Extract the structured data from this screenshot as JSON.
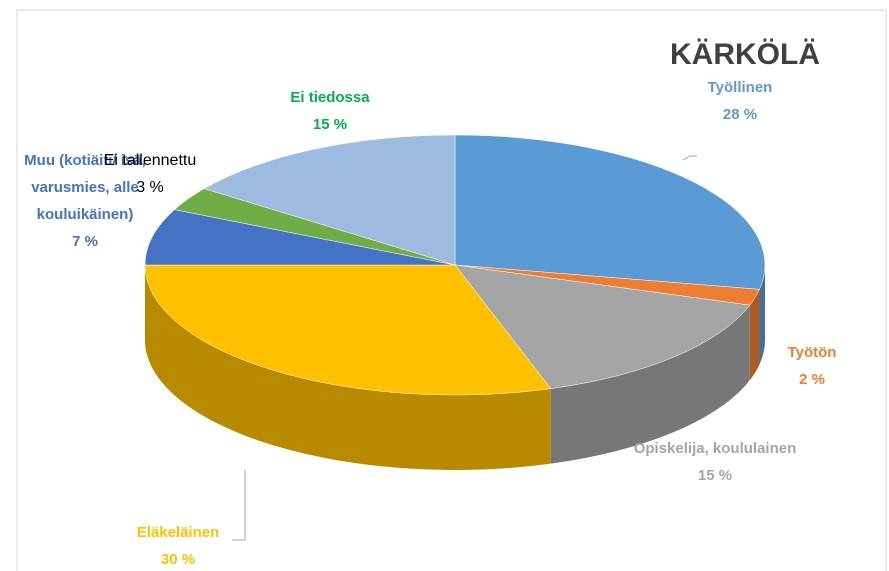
{
  "chart_data": {
    "type": "pie",
    "title": "KÄRKÖLÄ",
    "categories": [
      "Työllinen",
      "Työtön",
      "Opiskelija, koululainen",
      "Eläkeläinen",
      "Muu (kotiäiti/ isä, varusmies, alle kouluikäinen)",
      "Ei tallennettu",
      "Ei tiedossa"
    ],
    "values": [
      28,
      2,
      15,
      30,
      7,
      3,
      15
    ],
    "value_labels": [
      "28 %",
      "2 %",
      "15 %",
      "30 %",
      "7 %",
      "3 %",
      "15 %"
    ],
    "colors": [
      "#5b9bd5",
      "#ed7d31",
      "#a5a5a5",
      "#ffc000",
      "#4472c4",
      "#70ad47",
      "#9dbbe0"
    ],
    "label_colors": [
      "#5b9bd5",
      "#ed7d31",
      "#a5a5a5",
      "#ffc000",
      "#4472c4",
      "#000000",
      "#00b050"
    ]
  }
}
